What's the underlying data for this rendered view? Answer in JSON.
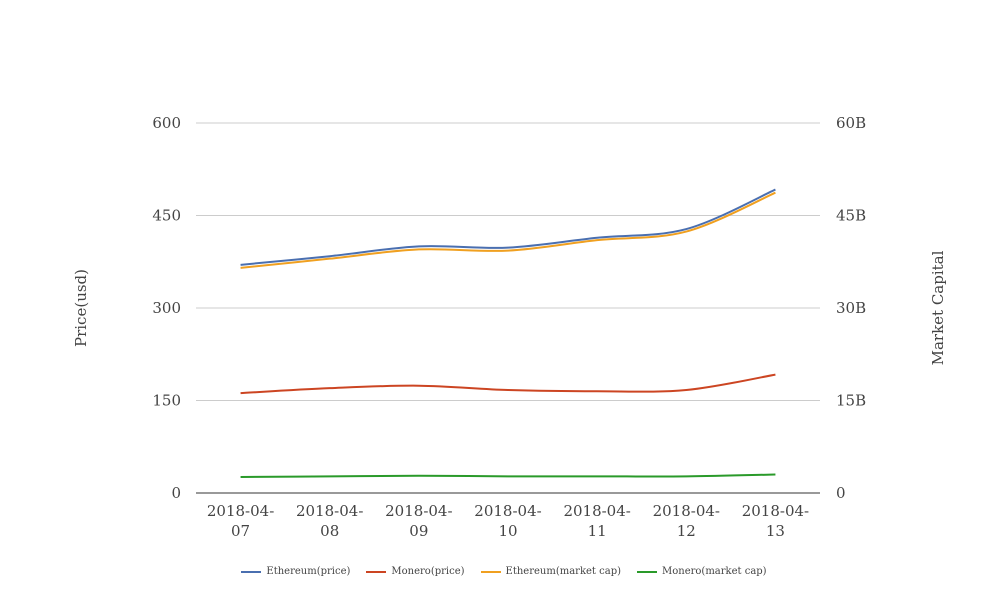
{
  "chart_data": {
    "type": "line",
    "x": [
      "2018-04-07",
      "2018-04-08",
      "2018-04-09",
      "2018-04-10",
      "2018-04-11",
      "2018-04-12",
      "2018-04-13"
    ],
    "x_tick_labels": [
      [
        "2018-04-",
        "07"
      ],
      [
        "2018-04-",
        "08"
      ],
      [
        "2018-04-",
        "09"
      ],
      [
        "2018-04-",
        "10"
      ],
      [
        "2018-04-",
        "11"
      ],
      [
        "2018-04-",
        "12"
      ],
      [
        "2018-04-",
        "13"
      ]
    ],
    "ylabel_left": "Price(usd)",
    "ylabel_right": "Market Capital",
    "ylim_left": [
      0,
      600
    ],
    "ylim_right": [
      0,
      60000000000
    ],
    "yticks_left": [
      "0",
      "150",
      "300",
      "450",
      "600"
    ],
    "yticks_right": [
      "0",
      "15B",
      "30B",
      "45B",
      "60B"
    ],
    "grid": true,
    "legend_position": "bottom",
    "series": [
      {
        "name": "Ethereum(price)",
        "axis": "left",
        "color": "#4a6fb0",
        "values": [
          370,
          384,
          400,
          398,
          414,
          428,
          492
        ]
      },
      {
        "name": "Monero(price)",
        "axis": "left",
        "color": "#cc4522",
        "values": [
          162,
          170,
          174,
          167,
          165,
          167,
          192
        ]
      },
      {
        "name": "Ethereum(market cap)",
        "axis": "right",
        "color": "#f0a020",
        "values": [
          36500000000,
          38000000000,
          39500000000,
          39300000000,
          41000000000,
          42400000000,
          48700000000
        ]
      },
      {
        "name": "Monero(market cap)",
        "axis": "right",
        "color": "#2a9a2a",
        "values": [
          2600000000,
          2700000000,
          2800000000,
          2700000000,
          2700000000,
          2700000000,
          3000000000
        ]
      }
    ]
  }
}
